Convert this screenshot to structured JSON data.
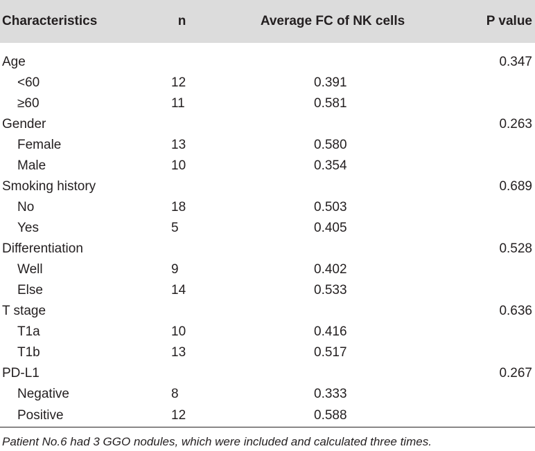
{
  "table": {
    "headers": {
      "characteristics": "Characteristics",
      "n": "n",
      "average_fc": "Average FC of NK cells",
      "p_value": "P value"
    },
    "groups": [
      {
        "label": "Age",
        "p_value": "0.347",
        "rows": [
          {
            "label": "<60",
            "n": "12",
            "fc": "0.391"
          },
          {
            "label": "≥60",
            "n": "11",
            "fc": "0.581"
          }
        ]
      },
      {
        "label": "Gender",
        "p_value": "0.263",
        "rows": [
          {
            "label": "Female",
            "n": "13",
            "fc": "0.580"
          },
          {
            "label": "Male",
            "n": "10",
            "fc": "0.354"
          }
        ]
      },
      {
        "label": "Smoking history",
        "p_value": "0.689",
        "rows": [
          {
            "label": "No",
            "n": "18",
            "fc": "0.503"
          },
          {
            "label": "Yes",
            "n": "5",
            "fc": "0.405"
          }
        ]
      },
      {
        "label": "Differentiation",
        "p_value": "0.528",
        "rows": [
          {
            "label": "Well",
            "n": "9",
            "fc": "0.402"
          },
          {
            "label": "Else",
            "n": "14",
            "fc": "0.533"
          }
        ]
      },
      {
        "label": "T stage",
        "p_value": "0.636",
        "rows": [
          {
            "label": "T1a",
            "n": "10",
            "fc": "0.416"
          },
          {
            "label": "T1b",
            "n": "13",
            "fc": "0.517"
          }
        ]
      },
      {
        "label": "PD-L1",
        "p_value": "0.267",
        "rows": [
          {
            "label": "Negative",
            "n": "8",
            "fc": "0.333"
          },
          {
            "label": "Positive",
            "n": "12",
            "fc": "0.588"
          }
        ]
      }
    ]
  },
  "footnote": "Patient No.6 had 3 GGO nodules, which were included and calculated three times.",
  "colors": {
    "header_background": "#dcdcdc",
    "text": "#231f20"
  }
}
